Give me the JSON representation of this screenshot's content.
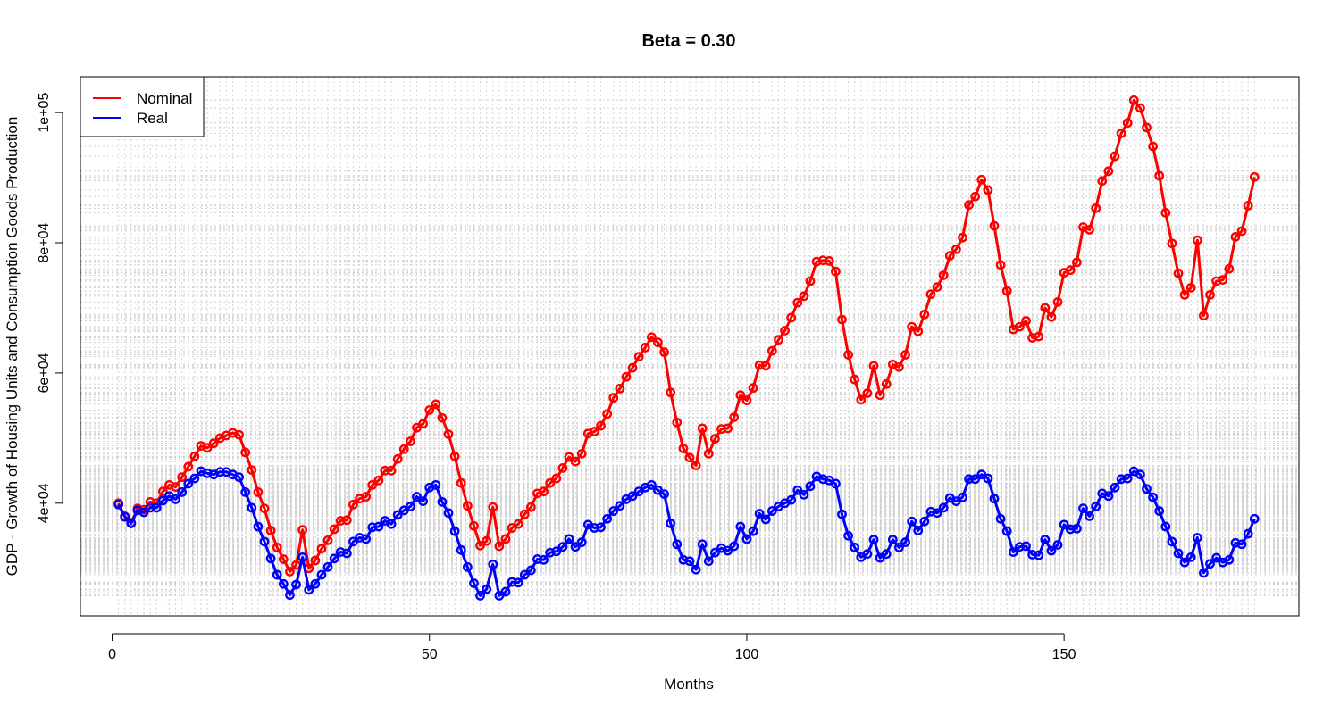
{
  "chart_data": {
    "type": "line",
    "title": "Beta = 0.30",
    "xlabel": "Months",
    "ylabel": "GDP - Growth of Housing Units and Consumption Goods Production",
    "xlim": [
      -5,
      187
    ],
    "ylim": [
      22700,
      105500
    ],
    "x_ticks": [
      0,
      50,
      100,
      150
    ],
    "x_tick_labels": [
      "0",
      "50",
      "100",
      "150"
    ],
    "y_ticks": [
      40000,
      60000,
      80000,
      100000
    ],
    "y_tick_labels": [
      "4e+04",
      "6e+04",
      "8e+04",
      "1e+05"
    ],
    "grid": true,
    "legend_position": "top-left",
    "x_start": 1,
    "series": [
      {
        "name": "Nominal",
        "color": "#ff0000",
        "values": [
          40000,
          38000,
          37000,
          39200,
          39000,
          40200,
          40000,
          41800,
          42800,
          42500,
          44000,
          45600,
          47200,
          48800,
          48500,
          49200,
          50000,
          50400,
          50800,
          50500,
          47800,
          45100,
          41700,
          39200,
          35800,
          33200,
          31400,
          29500,
          30500,
          35900,
          30000,
          31200,
          33000,
          34300,
          36000,
          37300,
          37400,
          39800,
          40700,
          41000,
          42800,
          43500,
          45000,
          45000,
          46800,
          48300,
          49500,
          51600,
          52200,
          54300,
          55200,
          53100,
          50600,
          47200,
          43100,
          39600,
          36500,
          33500,
          34200,
          39400,
          33400,
          34500,
          36200,
          36800,
          38300,
          39400,
          41500,
          41800,
          43100,
          43800,
          45400,
          47100,
          46400,
          47600,
          50700,
          51000,
          51900,
          53700,
          56200,
          57600,
          59400,
          60800,
          62500,
          63900,
          65500,
          64700,
          63200,
          57000,
          52400,
          48400,
          47000,
          45800,
          51500,
          47600,
          49900,
          51400,
          51500,
          53200,
          56600,
          55800,
          57700,
          61200,
          61100,
          63400,
          65100,
          66500,
          68500,
          70800,
          71800,
          74100,
          77100,
          77300,
          77200,
          75600,
          68200,
          62800,
          59000,
          55900,
          56900,
          61100,
          56600,
          58300,
          61300,
          60900,
          62800,
          67100,
          66400,
          69000,
          72100,
          73200,
          75000,
          78000,
          79000,
          80800,
          85800,
          87100,
          89700,
          88100,
          82600,
          76600,
          72600,
          66700,
          67100,
          68000,
          65400,
          65600,
          70000,
          68600,
          70900,
          75400,
          75800,
          77000,
          82400,
          82000,
          85300,
          89500,
          91000,
          93300,
          96800,
          98400,
          101900,
          100700,
          97700,
          94800,
          90300,
          84600,
          79900,
          75300,
          72000,
          73100,
          80400,
          68800,
          72000,
          74100,
          74300,
          76000,
          80900,
          81800,
          85700,
          90100
        ]
      },
      {
        "name": "Real",
        "color": "#0000ff",
        "values": [
          39800,
          37900,
          36900,
          38900,
          38600,
          39300,
          39300,
          40400,
          41100,
          40600,
          41700,
          43000,
          43800,
          44900,
          44600,
          44400,
          44800,
          44800,
          44400,
          44000,
          41700,
          39300,
          36400,
          34100,
          31500,
          29000,
          27600,
          25900,
          27500,
          31700,
          26700,
          27600,
          29000,
          30200,
          31500,
          32500,
          32300,
          34100,
          34700,
          34500,
          36300,
          36400,
          37300,
          36800,
          38200,
          38900,
          39500,
          41000,
          40300,
          42400,
          42800,
          40200,
          38500,
          35700,
          32800,
          30200,
          27700,
          25800,
          26800,
          30600,
          25800,
          26400,
          27900,
          27800,
          29000,
          29700,
          31400,
          31300,
          32400,
          32600,
          33300,
          34500,
          33300,
          34000,
          36700,
          36200,
          36300,
          37600,
          38800,
          39600,
          40600,
          41100,
          41800,
          42400,
          42800,
          42000,
          41400,
          36900,
          33700,
          31300,
          31100,
          29800,
          33700,
          31100,
          32400,
          33100,
          32700,
          33400,
          36400,
          34500,
          35700,
          38400,
          37500,
          38800,
          39500,
          40000,
          40500,
          42000,
          41300,
          42600,
          44100,
          43700,
          43500,
          43000,
          38300,
          35000,
          33200,
          31700,
          32200,
          34400,
          31600,
          32200,
          34400,
          33200,
          34000,
          37200,
          35800,
          37200,
          38700,
          38500,
          39300,
          40800,
          40300,
          40900,
          43700,
          43700,
          44400,
          43800,
          40700,
          37600,
          35700,
          32500,
          33300,
          33400,
          32100,
          32000,
          34400,
          32700,
          33600,
          36700,
          36000,
          36100,
          39200,
          38000,
          39500,
          41500,
          41100,
          42400,
          43700,
          43800,
          44900,
          44400,
          42200,
          40900,
          38800,
          36400,
          34100,
          32300,
          30900,
          31700,
          34700,
          29300,
          30700,
          31600,
          30900,
          31300,
          33900,
          33700,
          35300,
          37600
        ]
      }
    ]
  }
}
